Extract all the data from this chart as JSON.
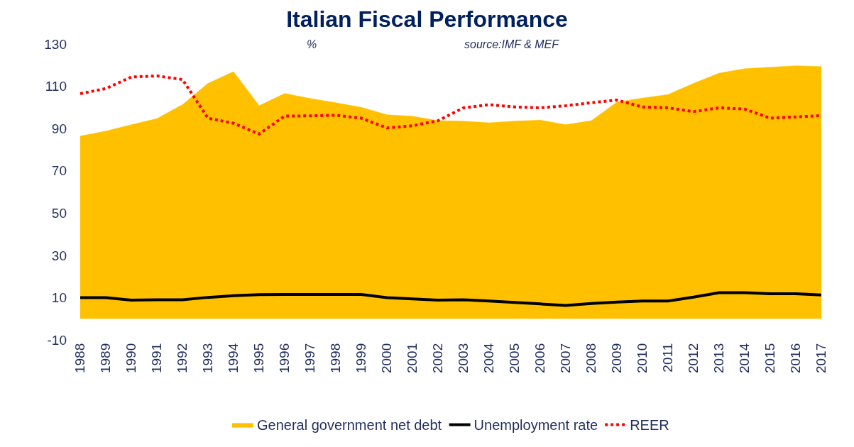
{
  "chart_data": {
    "type": "area",
    "title": "Italian Fiscal Performance",
    "subtitle": "%",
    "annotations": [
      "source:IMF & MEF"
    ],
    "categories": [
      "1988",
      "1989",
      "1990",
      "1991",
      "1992",
      "1993",
      "1994",
      "1995",
      "1996",
      "1997",
      "1998",
      "1999",
      "2000",
      "2001",
      "2002",
      "2003",
      "2004",
      "2005",
      "2006",
      "2007",
      "2008",
      "2009",
      "2010",
      "2011",
      "2012",
      "2013",
      "2014",
      "2015",
      "2016",
      "2017"
    ],
    "series": [
      {
        "name": "General government net debt",
        "color": "#ffc000",
        "values": [
          86.4,
          88.8,
          91.8,
          94.7,
          101.3,
          111.4,
          116.9,
          100.8,
          106.6,
          104.2,
          102.2,
          100,
          96.5,
          95.8,
          93.7,
          93.5,
          92.7,
          93.5,
          94,
          91.8,
          93.7,
          102.5,
          104.4,
          106.1,
          111.4,
          116.2,
          118.3,
          119,
          119.7,
          119.3
        ]
      },
      {
        "name": "Unemployment rate",
        "type": "line",
        "color": "#000000",
        "line_style": "solid",
        "values": [
          10,
          10,
          8.8,
          9,
          9,
          10.1,
          10.9,
          11.4,
          11.5,
          11.5,
          11.5,
          11.5,
          10,
          9.4,
          8.8,
          9,
          8.4,
          7.7,
          7,
          6.3,
          7.2,
          7.9,
          8.4,
          8.4,
          10.2,
          12.3,
          12.3,
          11.8,
          11.8,
          11.2
        ]
      },
      {
        "name": "REER",
        "type": "line",
        "color": "#ff0000",
        "line_style": "dotted",
        "values": [
          106.5,
          108.9,
          114.4,
          114.9,
          113.2,
          94.9,
          92.5,
          87.4,
          95.9,
          96,
          96.3,
          94.9,
          90.3,
          91.3,
          93.7,
          99.8,
          101.3,
          100.2,
          99.8,
          100.8,
          102.2,
          103.5,
          100.2,
          99.8,
          98,
          99.8,
          99.2,
          94.9,
          95.5,
          96.1
        ]
      }
    ],
    "ylim": [
      -10,
      130
    ],
    "yticks": [
      -10,
      10,
      30,
      50,
      70,
      90,
      110,
      130
    ],
    "legend": "bottom",
    "marker": "none"
  }
}
